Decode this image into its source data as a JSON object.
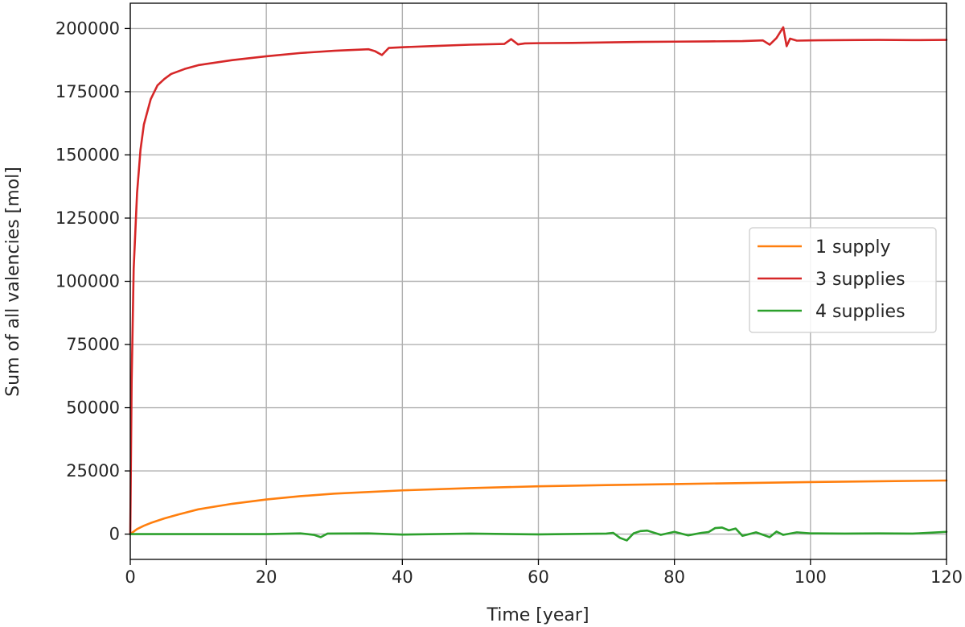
{
  "chart_data": {
    "type": "line",
    "title": "",
    "xlabel": "Time [year]",
    "ylabel": "Sum of all valencies [mol]",
    "xlim": [
      0,
      120
    ],
    "ylim": [
      -10000,
      210000
    ],
    "xticks": [
      0,
      20,
      40,
      60,
      80,
      100,
      120
    ],
    "yticks": [
      0,
      25000,
      50000,
      75000,
      100000,
      125000,
      150000,
      175000,
      200000
    ],
    "grid": true,
    "legend_position": "center-right",
    "series": [
      {
        "name": "1 supply",
        "color": "#ff7f0e",
        "x": [
          0,
          1,
          2,
          3,
          5,
          7,
          10,
          15,
          20,
          25,
          30,
          40,
          50,
          60,
          70,
          80,
          90,
          100,
          110,
          120
        ],
        "y": [
          0,
          2000,
          3300,
          4400,
          6200,
          7700,
          9800,
          12000,
          13700,
          15000,
          16000,
          17300,
          18200,
          18900,
          19400,
          19800,
          20200,
          20600,
          20900,
          21200
        ]
      },
      {
        "name": "3 supplies",
        "color": "#d62728",
        "x": [
          0,
          0.2,
          0.5,
          1,
          1.5,
          2,
          3,
          4,
          5,
          6,
          8,
          10,
          15,
          20,
          25,
          30,
          35,
          36,
          37,
          38,
          40,
          45,
          50,
          55,
          56,
          57,
          58,
          60,
          65,
          70,
          75,
          80,
          85,
          90,
          93,
          94,
          95,
          96,
          96.5,
          97,
          98,
          100,
          105,
          110,
          115,
          120
        ],
        "y": [
          0,
          60000,
          105000,
          135000,
          152000,
          162000,
          172000,
          177500,
          180000,
          182000,
          184000,
          185500,
          187500,
          189000,
          190300,
          191200,
          191800,
          191000,
          189500,
          192300,
          192600,
          193100,
          193600,
          193900,
          195800,
          193700,
          194100,
          194200,
          194300,
          194500,
          194700,
          194800,
          194900,
          195000,
          195300,
          193600,
          196200,
          200500,
          193000,
          196000,
          195200,
          195300,
          195400,
          195500,
          195400,
          195500
        ]
      },
      {
        "name": "4 supplies",
        "color": "#2ca02c",
        "x": [
          0,
          10,
          20,
          25,
          27,
          28,
          29,
          35,
          40,
          50,
          60,
          70,
          71,
          72,
          73,
          74,
          75,
          76,
          78,
          80,
          82,
          84,
          85,
          86,
          87,
          88,
          89,
          90,
          92,
          94,
          95,
          96,
          98,
          100,
          105,
          110,
          115,
          118,
          120
        ],
        "y": [
          0,
          0,
          0,
          300,
          -300,
          -1200,
          200,
          300,
          -200,
          200,
          -100,
          200,
          500,
          -1500,
          -2500,
          300,
          1200,
          1400,
          -300,
          900,
          -500,
          500,
          800,
          2400,
          2600,
          1500,
          2200,
          -700,
          700,
          -1200,
          1000,
          -300,
          700,
          300,
          200,
          300,
          200,
          600,
          900
        ]
      }
    ]
  }
}
